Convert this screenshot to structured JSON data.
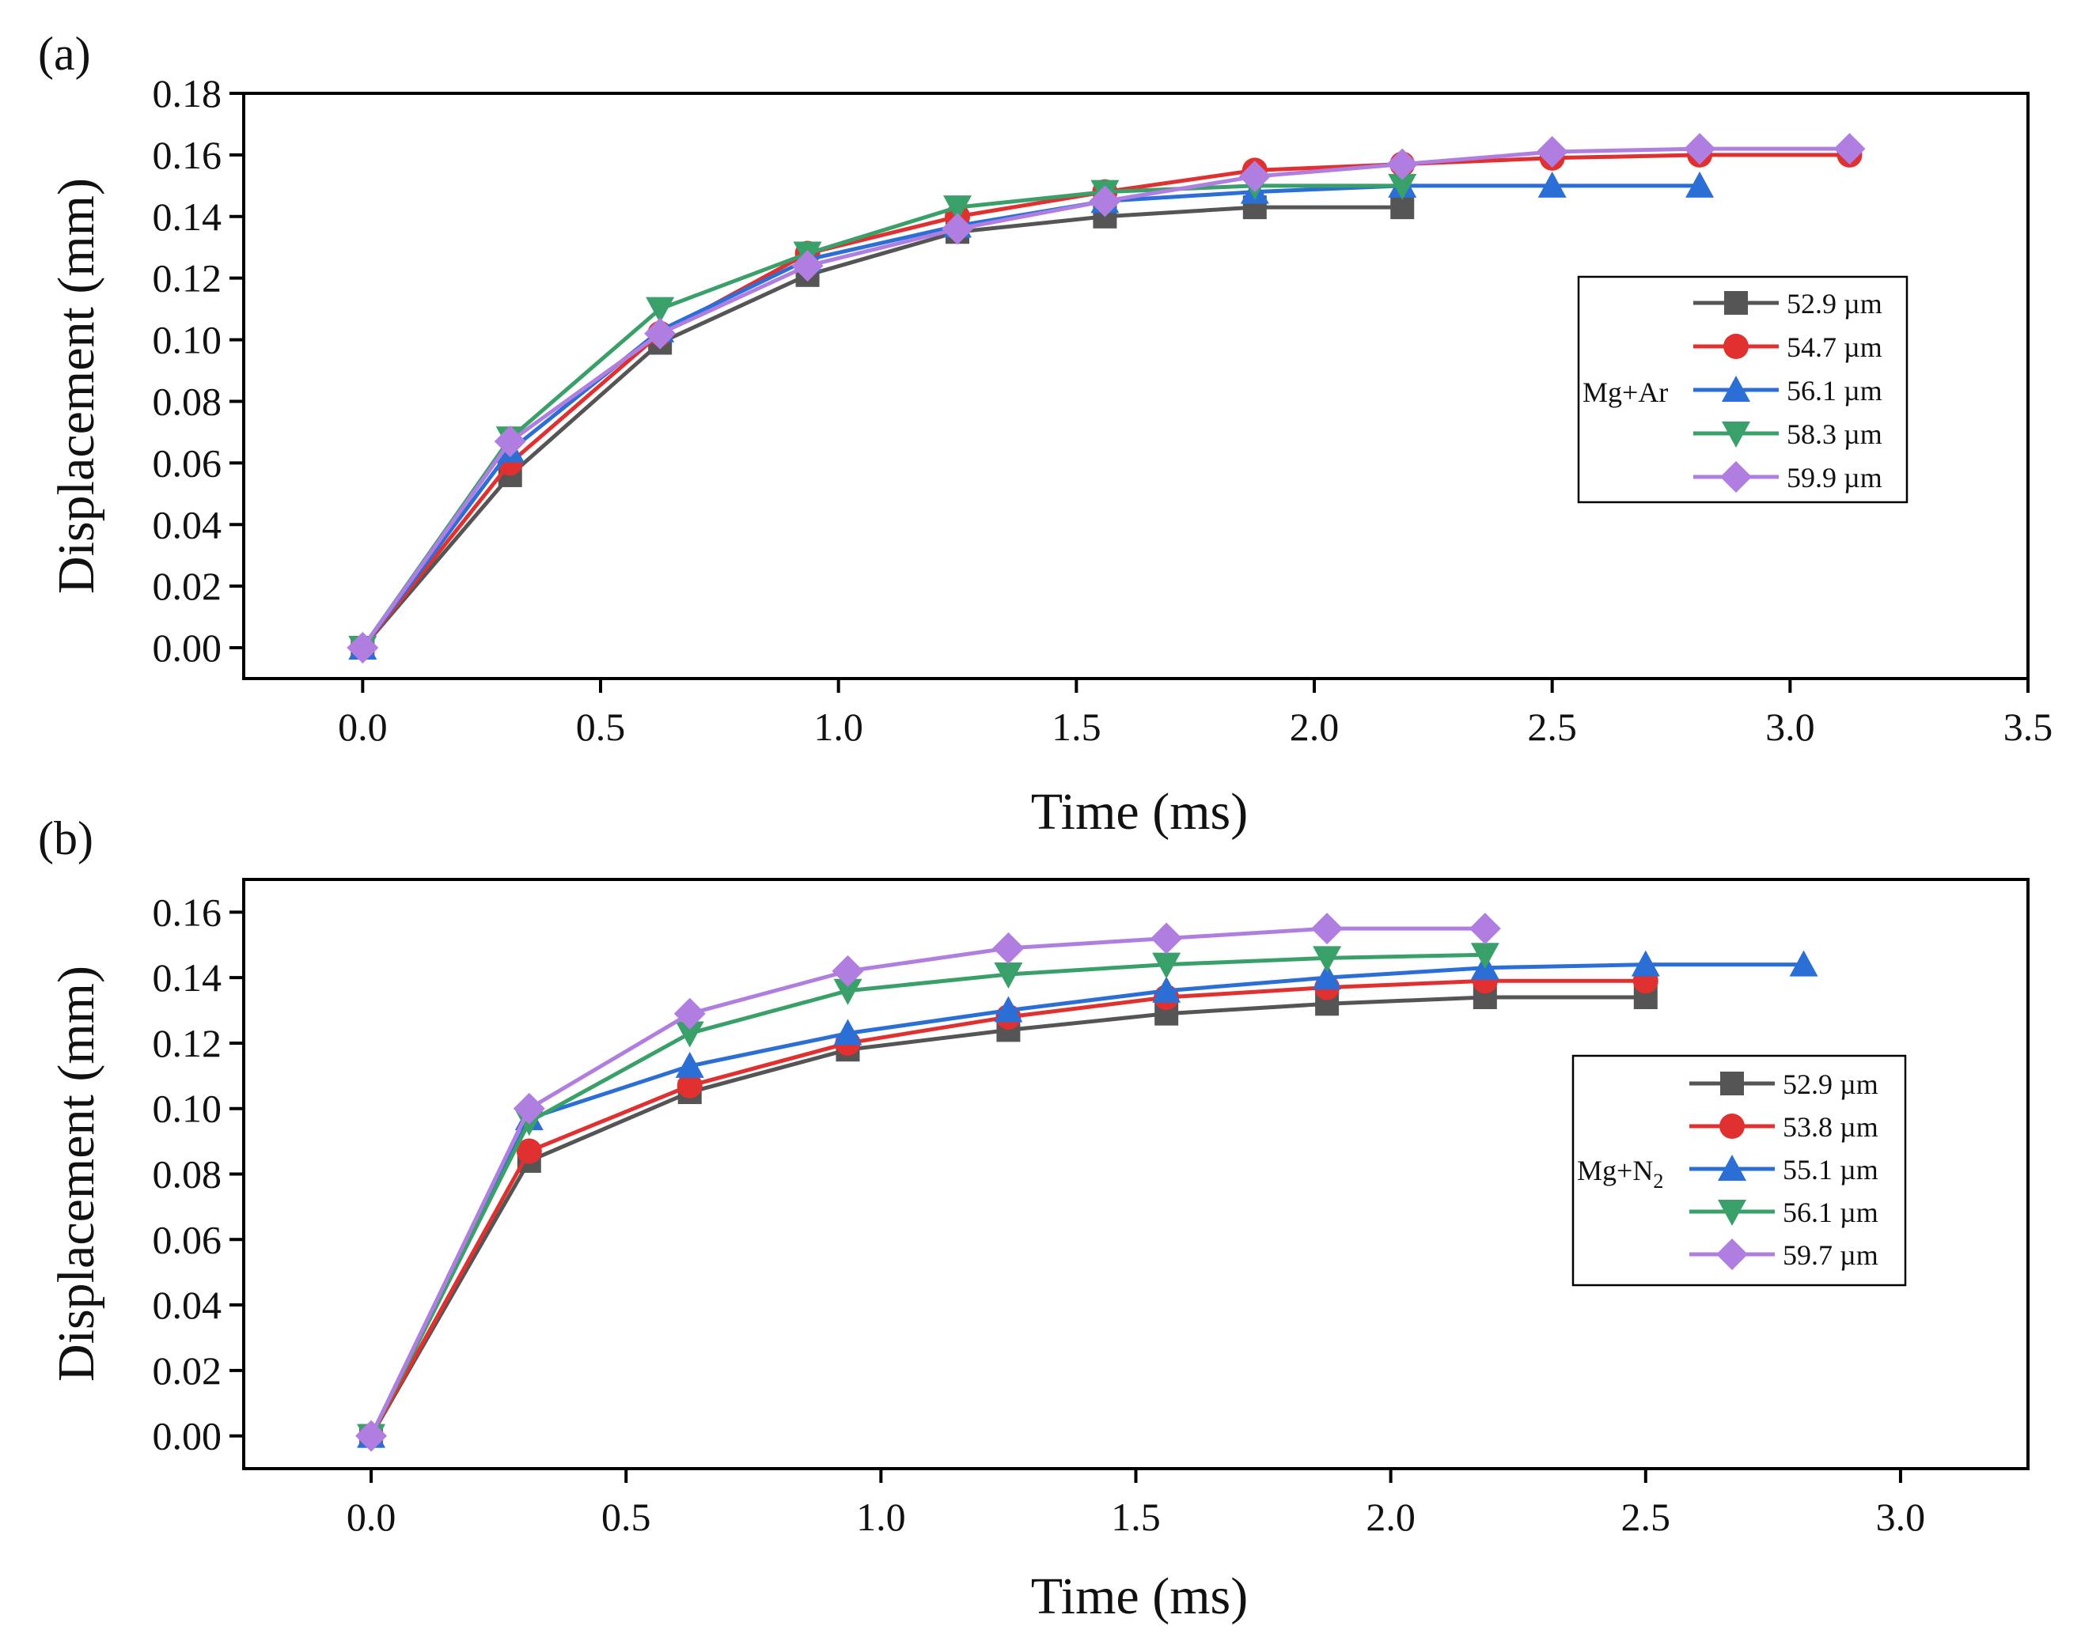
{
  "chart_data": [
    {
      "panel_label": "(a)",
      "type": "line",
      "xlabel": "Time (ms)",
      "ylabel": "Displacement (mm)",
      "xlim": [
        -0.25,
        3.5
      ],
      "ylim": [
        -0.01,
        0.18
      ],
      "xticks": [
        0.0,
        0.5,
        1.0,
        1.5,
        2.0,
        2.5,
        3.0,
        3.5
      ],
      "xtick_labels": [
        "0.0",
        "0.5",
        "1.0",
        "1.5",
        "2.0",
        "2.5",
        "3.0",
        "3.5"
      ],
      "yticks": [
        0.0,
        0.02,
        0.04,
        0.06,
        0.08,
        0.1,
        0.12,
        0.14,
        0.16,
        0.18
      ],
      "ytick_labels": [
        "0.00",
        "0.02",
        "0.04",
        "0.06",
        "0.08",
        "0.10",
        "0.12",
        "0.14",
        "0.16",
        "0.18"
      ],
      "legend_prefix": "Mg+Ar",
      "legend_position": "right",
      "series": [
        {
          "name": "52.9 µm",
          "color": "#555555",
          "marker": "square",
          "x": [
            0,
            0.31,
            0.625,
            0.935,
            1.25,
            1.56,
            1.875,
            2.185
          ],
          "y": [
            0.0,
            0.056,
            0.099,
            0.121,
            0.135,
            0.14,
            0.143,
            0.143
          ]
        },
        {
          "name": "54.7 µm",
          "color": "#e03030",
          "marker": "circle",
          "x": [
            0,
            0.31,
            0.625,
            0.935,
            1.25,
            1.56,
            1.875,
            2.185,
            2.5,
            2.81,
            3.125
          ],
          "y": [
            0.0,
            0.06,
            0.102,
            0.128,
            0.14,
            0.148,
            0.155,
            0.157,
            0.159,
            0.16,
            0.16
          ]
        },
        {
          "name": "56.1 µm",
          "color": "#2b6fd6",
          "marker": "triangle-up",
          "x": [
            0,
            0.31,
            0.625,
            0.935,
            1.25,
            1.56,
            1.875,
            2.185,
            2.5,
            2.81
          ],
          "y": [
            0.0,
            0.064,
            0.103,
            0.126,
            0.137,
            0.145,
            0.148,
            0.15,
            0.15,
            0.15
          ]
        },
        {
          "name": "58.3 µm",
          "color": "#3aa06a",
          "marker": "triangle-down",
          "x": [
            0,
            0.31,
            0.625,
            0.935,
            1.25,
            1.56,
            1.875,
            2.185
          ],
          "y": [
            0.0,
            0.068,
            0.11,
            0.128,
            0.143,
            0.148,
            0.15,
            0.15
          ]
        },
        {
          "name": "59.9 µm",
          "color": "#b07ee0",
          "marker": "diamond",
          "x": [
            0,
            0.31,
            0.625,
            0.935,
            1.25,
            1.56,
            1.875,
            2.185,
            2.5,
            2.81,
            3.125
          ],
          "y": [
            0.0,
            0.067,
            0.102,
            0.124,
            0.136,
            0.145,
            0.153,
            0.157,
            0.161,
            0.162,
            0.162
          ]
        }
      ]
    },
    {
      "panel_label": "(b)",
      "type": "line",
      "xlabel": "Time (ms)",
      "ylabel": "Displacement (mm)",
      "xlim": [
        -0.25,
        3.25
      ],
      "ylim": [
        -0.01,
        0.17
      ],
      "xticks": [
        0.0,
        0.5,
        1.0,
        1.5,
        2.0,
        2.5,
        3.0
      ],
      "xtick_labels": [
        "0.0",
        "0.5",
        "1.0",
        "1.5",
        "2.0",
        "2.5",
        "3.0"
      ],
      "yticks": [
        0.0,
        0.02,
        0.04,
        0.06,
        0.08,
        0.1,
        0.12,
        0.14,
        0.16
      ],
      "ytick_labels": [
        "0.00",
        "0.02",
        "0.04",
        "0.06",
        "0.08",
        "0.10",
        "0.12",
        "0.14",
        "0.16"
      ],
      "legend_prefix": "Mg+N",
      "legend_prefix_sub": "2",
      "legend_position": "right",
      "series": [
        {
          "name": "52.9 µm",
          "color": "#555555",
          "marker": "square",
          "x": [
            0,
            0.31,
            0.625,
            0.935,
            1.25,
            1.56,
            1.875,
            2.185,
            2.5
          ],
          "y": [
            0.0,
            0.084,
            0.105,
            0.118,
            0.124,
            0.129,
            0.132,
            0.134,
            0.134
          ]
        },
        {
          "name": "53.8 µm",
          "color": "#e03030",
          "marker": "circle",
          "x": [
            0,
            0.31,
            0.625,
            0.935,
            1.25,
            1.56,
            1.875,
            2.185,
            2.5
          ],
          "y": [
            0.0,
            0.087,
            0.107,
            0.12,
            0.128,
            0.134,
            0.137,
            0.139,
            0.139
          ]
        },
        {
          "name": "55.1 µm",
          "color": "#2b6fd6",
          "marker": "triangle-up",
          "x": [
            0,
            0.31,
            0.625,
            0.935,
            1.25,
            1.56,
            1.875,
            2.185,
            2.5,
            2.81
          ],
          "y": [
            0.0,
            0.097,
            0.113,
            0.123,
            0.13,
            0.136,
            0.14,
            0.143,
            0.144,
            0.144
          ]
        },
        {
          "name": "56.1 µm",
          "color": "#3aa06a",
          "marker": "triangle-down",
          "x": [
            0,
            0.31,
            0.625,
            0.935,
            1.25,
            1.56,
            1.875,
            2.185
          ],
          "y": [
            0.0,
            0.096,
            0.123,
            0.136,
            0.141,
            0.144,
            0.146,
            0.147
          ]
        },
        {
          "name": "59.7 µm",
          "color": "#b07ee0",
          "marker": "diamond",
          "x": [
            0,
            0.31,
            0.625,
            0.935,
            1.25,
            1.56,
            1.875,
            2.185
          ],
          "y": [
            0.0,
            0.1,
            0.129,
            0.142,
            0.149,
            0.152,
            0.155,
            0.155
          ]
        }
      ]
    }
  ]
}
